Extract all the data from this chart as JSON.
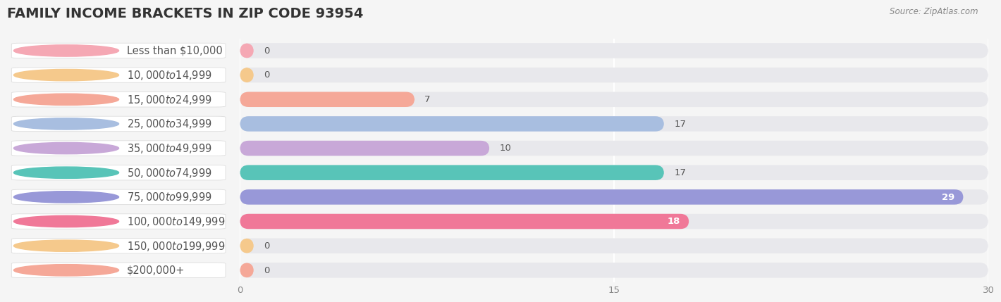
{
  "title": "FAMILY INCOME BRACKETS IN ZIP CODE 93954",
  "source": "Source: ZipAtlas.com",
  "categories": [
    "Less than $10,000",
    "$10,000 to $14,999",
    "$15,000 to $24,999",
    "$25,000 to $34,999",
    "$35,000 to $49,999",
    "$50,000 to $74,999",
    "$75,000 to $99,999",
    "$100,000 to $149,999",
    "$150,000 to $199,999",
    "$200,000+"
  ],
  "values": [
    0,
    0,
    7,
    17,
    10,
    17,
    29,
    18,
    0,
    0
  ],
  "bar_colors": [
    "#F5A8B4",
    "#F5C98C",
    "#F5A898",
    "#A8BEE0",
    "#C8A8D8",
    "#58C4B8",
    "#9898D8",
    "#F07898",
    "#F5C98C",
    "#F5A898"
  ],
  "bg_color": "#f5f5f5",
  "bar_bg_color": "#e8e8ec",
  "xlim": [
    0,
    30
  ],
  "xticks": [
    0,
    15,
    30
  ],
  "title_fontsize": 14,
  "label_fontsize": 10.5,
  "value_fontsize": 9.5,
  "tick_fontsize": 9.5,
  "label_color": "#555555",
  "value_color_dark": "#555555",
  "value_color_light": "#ffffff",
  "grid_color": "#ffffff",
  "bar_height": 0.62,
  "bar_gap": 0.38
}
